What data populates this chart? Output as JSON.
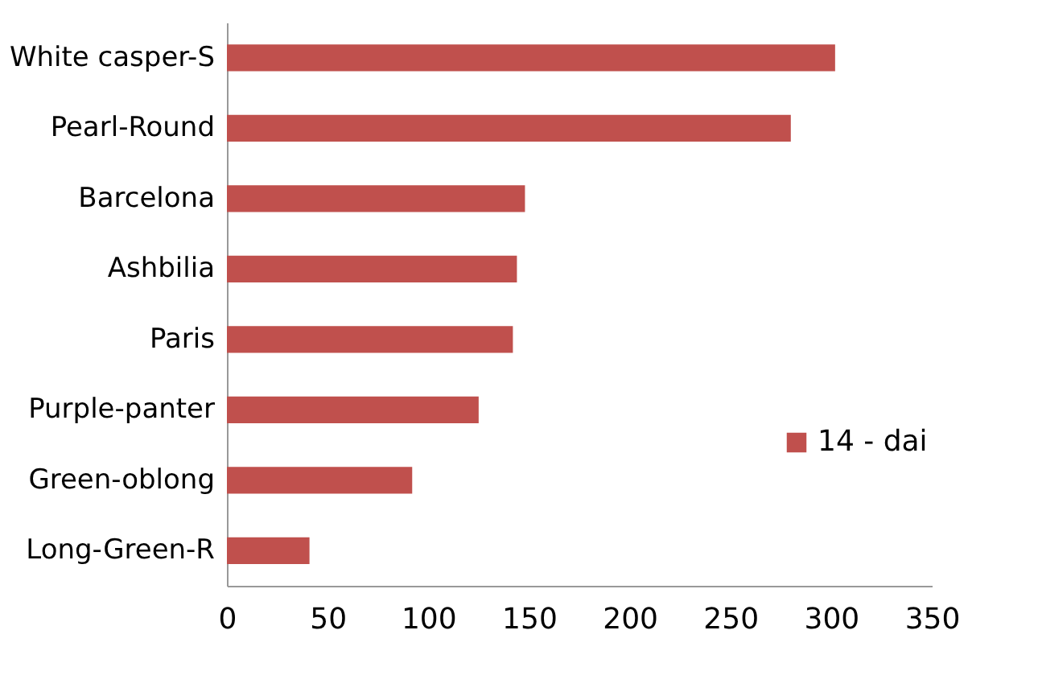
{
  "chart_data": {
    "type": "bar",
    "orientation": "horizontal",
    "categories": [
      "White casper-S",
      "Pearl-Round",
      "Barcelona",
      "Ashbilia",
      "Paris",
      "Purple-panter",
      "Green-oblong",
      "Long-Green-R"
    ],
    "series": [
      {
        "name": "14 - dai",
        "color": "#c0504d",
        "values": [
          302,
          280,
          148,
          144,
          142,
          125,
          92,
          41
        ]
      }
    ],
    "xlim": [
      0,
      350
    ],
    "xticks": [
      0,
      50,
      100,
      150,
      200,
      250,
      300,
      350
    ],
    "grid": false,
    "legend": "right"
  }
}
